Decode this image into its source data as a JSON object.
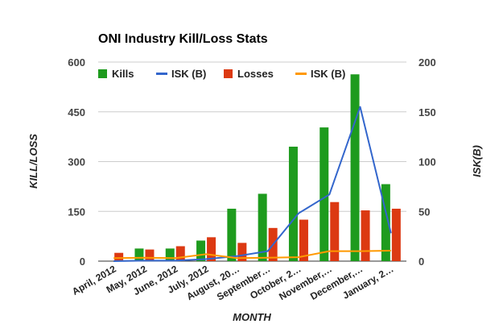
{
  "chart_data": {
    "type": "bar",
    "title": "ONI Industry Kill/Loss Stats",
    "xlabel": "MONTH",
    "ylabel": "KILL/LOSS",
    "y2label": "ISK(B)",
    "categories": [
      "April, 2012",
      "May, 2012",
      "June, 2012",
      "July, 2012",
      "August, 20…",
      "September…",
      "October, 2…",
      "November,…",
      "December,…",
      "January, 2…"
    ],
    "ylim": [
      0,
      600
    ],
    "yticks": [
      "0",
      "150",
      "300",
      "450",
      "600"
    ],
    "y2lim": [
      0,
      200
    ],
    "y2ticks": [
      "0",
      "50",
      "100",
      "150",
      "200"
    ],
    "grid": true,
    "legend_position": "top",
    "series": [
      {
        "name": "Kills",
        "kind": "bar",
        "axis": "left",
        "color": "#1e9b1e",
        "values": [
          0,
          38,
          38,
          62,
          158,
          203,
          345,
          403,
          563,
          232
        ]
      },
      {
        "name": "ISK (B)",
        "kind": "line",
        "axis": "right",
        "color": "#3366cc",
        "values": [
          0,
          0.5,
          0.5,
          2,
          5,
          10,
          48,
          67,
          155,
          28
        ]
      },
      {
        "name": "Losses",
        "kind": "bar",
        "axis": "left",
        "color": "#dc3912",
        "values": [
          25,
          35,
          45,
          72,
          55,
          100,
          125,
          178,
          153,
          158
        ]
      },
      {
        "name": "ISK (B)",
        "kind": "line",
        "axis": "right",
        "color": "#ff9900",
        "values": [
          3,
          3.5,
          3,
          7,
          3,
          3.5,
          4,
          10,
          10,
          10.5
        ]
      }
    ]
  }
}
